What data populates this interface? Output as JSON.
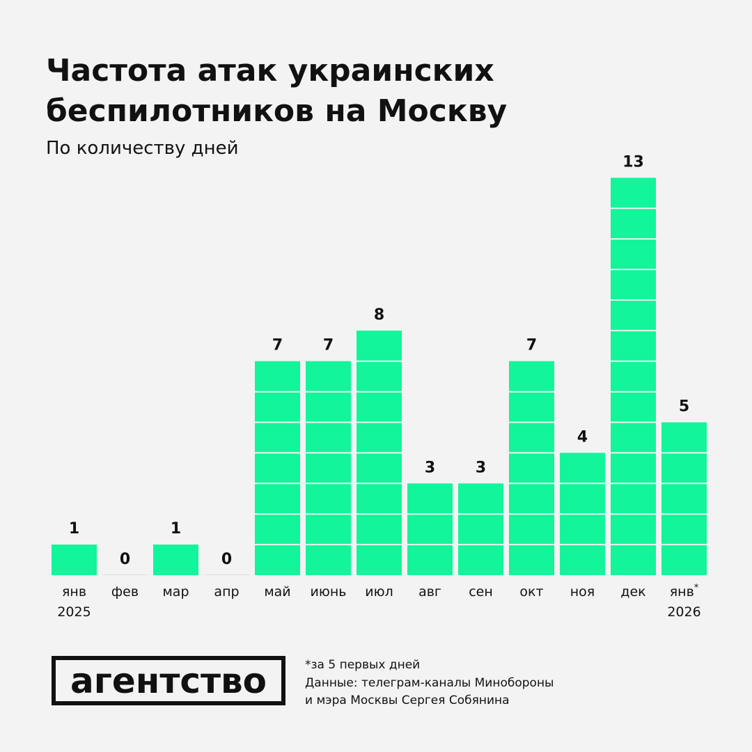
{
  "chart_data": {
    "type": "bar",
    "title_lines": [
      "Частота атак украинских",
      "беспилотников на Москву"
    ],
    "subtitle": "По количеству дней",
    "categories": [
      "янв",
      "фев",
      "мар",
      "апр",
      "май",
      "июнь",
      "июл",
      "авг",
      "сен",
      "окт",
      "ноя",
      "дек",
      "янв"
    ],
    "category_years": [
      "2025",
      null,
      null,
      null,
      null,
      null,
      null,
      null,
      null,
      null,
      null,
      null,
      "2026"
    ],
    "category_marks": [
      null,
      null,
      null,
      null,
      null,
      null,
      null,
      null,
      null,
      null,
      null,
      null,
      "*"
    ],
    "values": [
      1,
      0,
      1,
      0,
      7,
      7,
      8,
      3,
      3,
      7,
      4,
      13,
      5
    ],
    "color": "#12f59a",
    "footnote": "*за 5 первых дней",
    "source_lines": [
      "Данные: телеграм-каналы Минобороны",
      "и мэра Москвы Сергея Собянина"
    ],
    "logo": "агентство"
  }
}
